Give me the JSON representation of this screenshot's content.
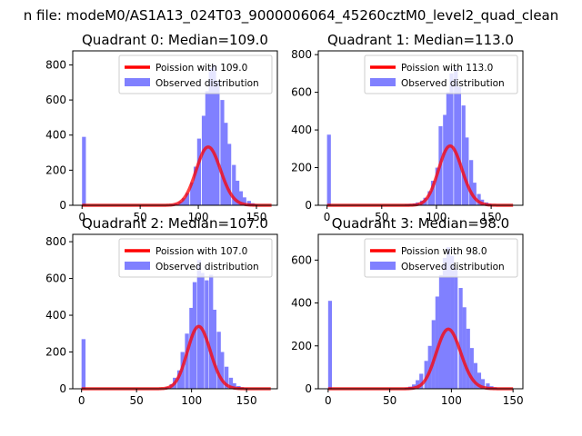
{
  "suptitle": "n file: modeM0/AS1A13_024T03_9000006064_45260cztM0_level2_quad_clean",
  "colors": {
    "hist": "#8080ff",
    "poisson": "#ff0000",
    "axis": "#000000",
    "legend_border": "#cccccc"
  },
  "chart_data": [
    {
      "type": "bar",
      "title": "Quadrant 0: Median=109.0",
      "median": 109.0,
      "xlim": [
        -8,
        168
      ],
      "ylim": [
        0,
        880
      ],
      "xticks": [
        "0",
        "50",
        "100",
        "150"
      ],
      "yticks": [
        "0",
        "200",
        "400",
        "600",
        "800"
      ],
      "legend": {
        "placement": "top-right",
        "entries": [
          "Poission with 109.0",
          "Observed distribution"
        ]
      },
      "series": [
        {
          "name": "Observed distribution",
          "kind": "histogram",
          "bin_width": 3.3,
          "values": [
            [
              0,
              390
            ],
            [
              76,
              5
            ],
            [
              79,
              10
            ],
            [
              83,
              20
            ],
            [
              86,
              40
            ],
            [
              89,
              70
            ],
            [
              93,
              130
            ],
            [
              96,
              220
            ],
            [
              99,
              380
            ],
            [
              103,
              510
            ],
            [
              106,
              650
            ],
            [
              109,
              780
            ],
            [
              112,
              800
            ],
            [
              115,
              710
            ],
            [
              119,
              600
            ],
            [
              122,
              470
            ],
            [
              125,
              350
            ],
            [
              129,
              230
            ],
            [
              132,
              140
            ],
            [
              135,
              80
            ],
            [
              138,
              45
            ],
            [
              142,
              25
            ],
            [
              145,
              12
            ],
            [
              148,
              6
            ]
          ]
        },
        {
          "name": "Poission with 109.0",
          "kind": "line",
          "lambda": 109.0,
          "scale": 8700,
          "x_range": [
            0,
            163
          ]
        }
      ]
    },
    {
      "type": "bar",
      "title": "Quadrant 1: Median=113.0",
      "median": 113.0,
      "xlim": [
        -8,
        179
      ],
      "ylim": [
        0,
        820
      ],
      "xticks": [
        "0",
        "50",
        "100",
        "150"
      ],
      "yticks": [
        "0",
        "200",
        "400",
        "600",
        "800"
      ],
      "legend": {
        "placement": "top-right",
        "entries": [
          "Poission with 113.0",
          "Observed distribution"
        ]
      },
      "series": [
        {
          "name": "Observed distribution",
          "kind": "histogram",
          "bin_width": 3.5,
          "values": [
            [
              0,
              375
            ],
            [
              67,
              3
            ],
            [
              71,
              5
            ],
            [
              74,
              7
            ],
            [
              78,
              10
            ],
            [
              81,
              15
            ],
            [
              85,
              25
            ],
            [
              88,
              40
            ],
            [
              92,
              75
            ],
            [
              95,
              130
            ],
            [
              99,
              200
            ],
            [
              102,
              420
            ],
            [
              106,
              480
            ],
            [
              109,
              600
            ],
            [
              112,
              700
            ],
            [
              116,
              730
            ],
            [
              119,
              630
            ],
            [
              123,
              530
            ],
            [
              126,
              360
            ],
            [
              130,
              240
            ],
            [
              133,
              120
            ],
            [
              137,
              60
            ],
            [
              140,
              30
            ],
            [
              144,
              15
            ],
            [
              147,
              8
            ]
          ]
        },
        {
          "name": "Poission with 113.0",
          "kind": "line",
          "lambda": 113.0,
          "scale": 8400,
          "x_range": [
            0,
            170
          ]
        }
      ]
    },
    {
      "type": "bar",
      "title": "Quadrant 2: Median=107.0",
      "median": 107.0,
      "xlim": [
        -8,
        178
      ],
      "ylim": [
        0,
        840
      ],
      "xticks": [
        "0",
        "50",
        "100",
        "150"
      ],
      "yticks": [
        "0",
        "200",
        "400",
        "600",
        "800"
      ],
      "legend": {
        "placement": "top-right",
        "entries": [
          "Poission with 107.0",
          "Observed distribution"
        ]
      },
      "series": [
        {
          "name": "Observed distribution",
          "kind": "histogram",
          "bin_width": 3.6,
          "values": [
            [
              0,
              270
            ],
            [
              76,
              10
            ],
            [
              80,
              25
            ],
            [
              83,
              60
            ],
            [
              87,
              100
            ],
            [
              90,
              200
            ],
            [
              94,
              300
            ],
            [
              98,
              440
            ],
            [
              101,
              580
            ],
            [
              105,
              700
            ],
            [
              108,
              630
            ],
            [
              112,
              590
            ],
            [
              116,
              620
            ],
            [
              119,
              430
            ],
            [
              123,
              310
            ],
            [
              126,
              200
            ],
            [
              130,
              120
            ],
            [
              134,
              60
            ],
            [
              137,
              30
            ],
            [
              141,
              15
            ],
            [
              144,
              8
            ],
            [
              148,
              4
            ]
          ]
        },
        {
          "name": "Poission with 107.0",
          "kind": "line",
          "lambda": 107.0,
          "scale": 8800,
          "x_range": [
            0,
            172
          ]
        }
      ]
    },
    {
      "type": "bar",
      "title": "Quadrant 3: Median=98.0",
      "median": 98.0,
      "xlim": [
        -8,
        158
      ],
      "ylim": [
        0,
        720
      ],
      "xticks": [
        "0",
        "50",
        "100",
        "150"
      ],
      "yticks": [
        "0",
        "200",
        "400",
        "600"
      ],
      "legend": {
        "placement": "top-right",
        "entries": [
          "Poission with 98.0",
          "Observed distribution"
        ]
      },
      "series": [
        {
          "name": "Observed distribution",
          "kind": "histogram",
          "bin_width": 3.1,
          "values": [
            [
              0,
              410
            ],
            [
              62,
              5
            ],
            [
              65,
              10
            ],
            [
              68,
              20
            ],
            [
              71,
              40
            ],
            [
              74,
              70
            ],
            [
              78,
              130
            ],
            [
              81,
              200
            ],
            [
              84,
              320
            ],
            [
              87,
              430
            ],
            [
              90,
              530
            ],
            [
              93,
              610
            ],
            [
              96,
              660
            ],
            [
              99,
              620
            ],
            [
              102,
              560
            ],
            [
              106,
              470
            ],
            [
              109,
              380
            ],
            [
              112,
              280
            ],
            [
              115,
              190
            ],
            [
              118,
              120
            ],
            [
              121,
              75
            ],
            [
              124,
              45
            ],
            [
              128,
              25
            ],
            [
              131,
              12
            ],
            [
              134,
              6
            ]
          ]
        },
        {
          "name": "Poission with 98.0",
          "kind": "line",
          "lambda": 98.0,
          "scale": 6900,
          "x_range": [
            0,
            150
          ]
        }
      ]
    }
  ]
}
